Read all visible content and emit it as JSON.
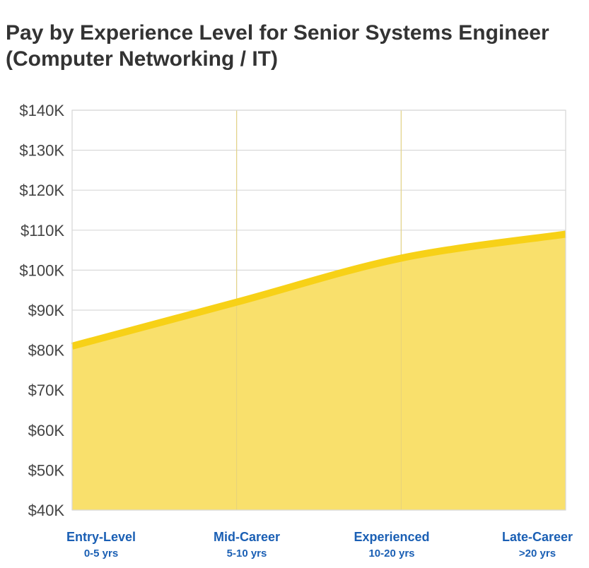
{
  "chart_data": {
    "type": "area",
    "title_line1": "Pay by Experience Level for Senior Systems Engineer",
    "title_line2": "(Computer Networking / IT)",
    "categories": [
      {
        "label": "Entry-Level",
        "sublabel": "0-5 yrs"
      },
      {
        "label": "Mid-Career",
        "sublabel": "5-10 yrs"
      },
      {
        "label": "Experienced",
        "sublabel": "10-20 yrs"
      },
      {
        "label": "Late-Career",
        "sublabel": ">20 yrs"
      }
    ],
    "series": [
      {
        "values": [
          81000,
          92000,
          103000,
          109000
        ]
      }
    ],
    "ylim": [
      40000,
      140000
    ],
    "y_ticks": [
      "$40K",
      "$50K",
      "$60K",
      "$70K",
      "$80K",
      "$90K",
      "$100K",
      "$110K",
      "$120K",
      "$130K",
      "$140K"
    ],
    "grid": true,
    "colors": {
      "line": "#f7d117",
      "fill": "#f9e06c",
      "grid": "#d9d9d9",
      "label": "#1a5fb4"
    }
  }
}
